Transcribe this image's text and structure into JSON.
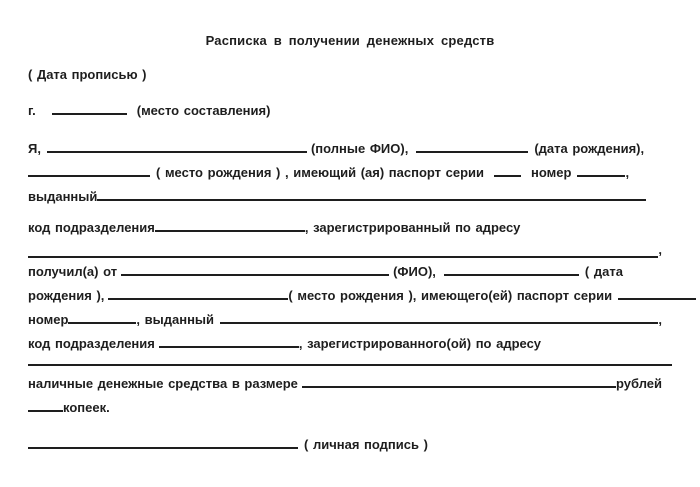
{
  "document": {
    "kind": "receipt-form",
    "text_color": "#1e1e1e",
    "background_color": "#ffffff"
  },
  "t": {
    "title": "Расписка в получении денежных средств",
    "date_note": "( Дата прописью )",
    "city": "г.",
    "city_note": "(место составления)",
    "ya": "Я,",
    "full_name_note": "(полные ФИО),",
    "birth_date_note": "(дата рождения),",
    "birth_place_passport": "( место рождения ) , имеющий (ая) паспорт серии",
    "number1": "номер",
    "comma1": ",",
    "issued1": "выданный",
    "unit_code1": "код подразделения",
    "registered1": ", зарегистрированный по адресу",
    "comma2": ",",
    "received_from": "получил(а) от",
    "fio_note": "(ФИО),",
    "date_open": "( дата",
    "birth2": "рождения ),",
    "birth_place2": "( место рождения ), имеющего(ей) паспорт серии",
    "number2": "номер",
    "issued2": ", выданный",
    "comma3": ",",
    "unit_code2": "код подразделения",
    "registered2": ", зарегистрированного(ой) по адресу",
    "cash_amount": "наличные денежные средства в размере",
    "rubles": "рублей",
    "kopecks": "копеек.",
    "signature_note": "( личная подпись )"
  }
}
